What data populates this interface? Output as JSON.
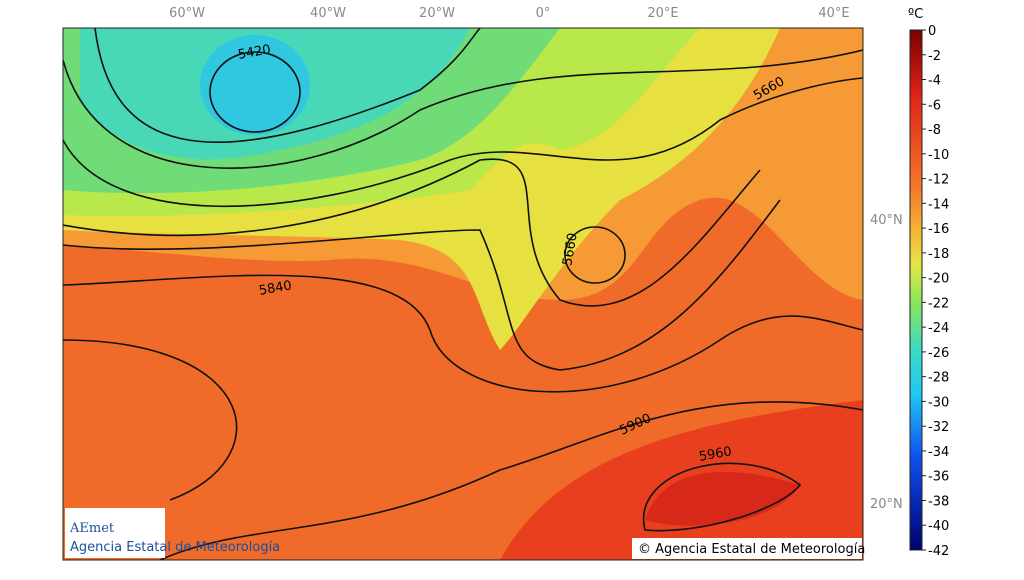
{
  "map": {
    "lon_labels": [
      "60°W",
      "40°W",
      "20°W",
      "0°",
      "20°E",
      "40°E"
    ],
    "lat_labels": [
      "40°N",
      "20°N"
    ],
    "contour_labels": [
      "5420",
      "5660",
      "5660",
      "5840",
      "5900",
      "5960"
    ]
  },
  "colorbar": {
    "unit": "ºC",
    "ticks": [
      0,
      -2,
      -4,
      -6,
      -8,
      -10,
      -12,
      -14,
      -16,
      -18,
      -20,
      -22,
      -24,
      -26,
      -28,
      -30,
      -32,
      -34,
      -36,
      -38,
      -40,
      -42
    ]
  },
  "logo": {
    "name": "AEmet",
    "subtitle": "Agencia Estatal de Meteorología"
  },
  "copyright": "© Agencia Estatal de Meteorología"
}
